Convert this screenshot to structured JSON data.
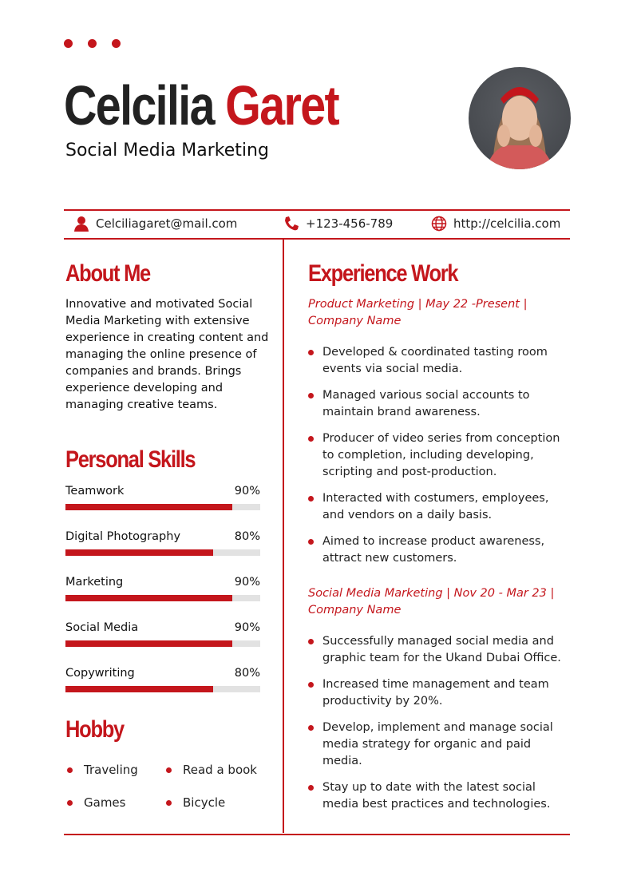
{
  "header": {
    "first_name": "Celcilia",
    "last_name": "Garet",
    "title": "Social Media Marketing"
  },
  "contact": {
    "email": "Celciliagaret@mail.com",
    "phone": "+123-456-789",
    "website": "http://celcilia.com"
  },
  "about": {
    "heading": "About Me",
    "text": "Innovative and motivated Social Media Marketing with extensive experience in creating content and managing the online presence of companies and brands. Brings experience developing and managing creative teams."
  },
  "skills": {
    "heading": "Personal Skills",
    "items": [
      {
        "label": "Teamwork",
        "value": "90%",
        "percent": 90
      },
      {
        "label": "Digital Photography",
        "value": "80%",
        "percent": 80
      },
      {
        "label": "Marketing",
        "value": "90%",
        "percent": 90
      },
      {
        "label": "Social Media",
        "value": "90%",
        "percent": 90
      },
      {
        "label": "Copywriting",
        "value": "80%",
        "percent": 80
      }
    ]
  },
  "hobby": {
    "heading": "Hobby",
    "items": [
      "Traveling",
      "Read a book",
      "Games",
      "Bicycle"
    ]
  },
  "experience": {
    "heading": "Experience Work",
    "jobs": [
      {
        "title": "Product Marketing | May 22 -Present | Company Name",
        "bullets": [
          "Developed & coordinated tasting room events via social media.",
          "Managed various social accounts to maintain brand awareness.",
          "Producer of video series from conception to completion, including developing, scripting and post-production.",
          "Interacted with costumers, employees, and vendors on a daily basis.",
          "Aimed to increase product awareness, attract new customers."
        ]
      },
      {
        "title": "Social Media Marketing | Nov 20 - Mar 23 | Company Name",
        "bullets": [
          "Successfully managed social media and graphic team for the Ukand Dubai Office.",
          "Increased time management and team productivity by 20%.",
          "Develop, implement and manage social media strategy for organic and paid media.",
          "Stay up to date with the latest social media best practices and technologies."
        ]
      }
    ]
  },
  "colors": {
    "accent": "#c4161c"
  }
}
